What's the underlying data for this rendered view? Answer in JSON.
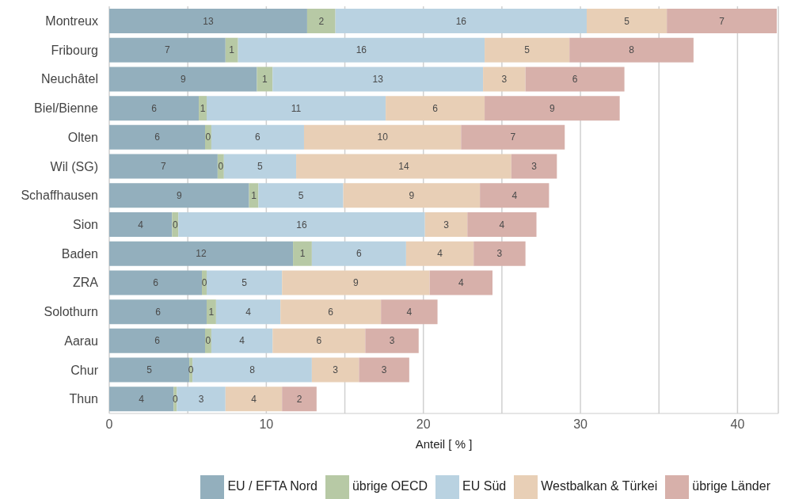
{
  "chart_data": {
    "type": "bar",
    "orientation": "horizontal",
    "stacked": true,
    "categories": [
      "Montreux",
      "Fribourg",
      "Neuchâtel",
      "Biel/Bienne",
      "Olten",
      "Wil (SG)",
      "Schaffhausen",
      "Sion",
      "Baden",
      "ZRA",
      "Solothurn",
      "Aarau",
      "Chur",
      "Thun"
    ],
    "series": [
      {
        "name": "EU / EFTA Nord",
        "color": "#93afbd",
        "values": [
          12.6,
          7.4,
          9.4,
          5.7,
          6.1,
          6.9,
          8.9,
          4.0,
          11.7,
          5.9,
          6.2,
          6.1,
          5.1,
          4.1
        ],
        "value_labels": [
          "13",
          "7",
          "9",
          "6",
          "6",
          "7",
          "9",
          "4",
          "12",
          "6",
          "6",
          "6",
          "5",
          "4"
        ]
      },
      {
        "name": "übrige OECD",
        "color": "#b7c9a5",
        "values": [
          1.8,
          0.8,
          1.0,
          0.5,
          0.4,
          0.4,
          0.6,
          0.4,
          1.2,
          0.3,
          0.6,
          0.4,
          0.2,
          0.2
        ],
        "value_labels": [
          "2",
          "1",
          "1",
          "1",
          "0",
          "0",
          "1",
          "0",
          "1",
          "0",
          "1",
          "0",
          "0",
          "0"
        ]
      },
      {
        "name": "EU Süd",
        "color": "#b9d2e1",
        "values": [
          16.0,
          15.7,
          13.4,
          11.4,
          5.9,
          4.6,
          5.4,
          15.7,
          6.0,
          4.8,
          4.1,
          3.9,
          7.6,
          3.1
        ],
        "value_labels": [
          "16",
          "16",
          "13",
          "11",
          "6",
          "5",
          "5",
          "16",
          "6",
          "5",
          "4",
          "4",
          "8",
          "3"
        ]
      },
      {
        "name": "Westbalkan & Türkei",
        "color": "#e8cfb6",
        "values": [
          5.1,
          5.4,
          2.7,
          6.3,
          10.0,
          13.7,
          8.7,
          2.7,
          4.3,
          9.4,
          6.4,
          5.9,
          3.0,
          3.6
        ],
        "value_labels": [
          "5",
          "5",
          "3",
          "6",
          "10",
          "14",
          "9",
          "3",
          "4",
          "9",
          "6",
          "6",
          "3",
          "4"
        ]
      },
      {
        "name": "übrige Länder",
        "color": "#d7b0aa",
        "values": [
          7.0,
          7.9,
          6.3,
          8.6,
          6.6,
          2.9,
          4.4,
          4.4,
          3.3,
          4.0,
          3.6,
          3.4,
          3.2,
          2.2
        ],
        "value_labels": [
          "7",
          "8",
          "6",
          "9",
          "7",
          "3",
          "4",
          "4",
          "3",
          "4",
          "4",
          "3",
          "3",
          "2"
        ]
      }
    ],
    "xlabel": "Anteil [ % ]",
    "xlim": [
      0,
      42.6
    ],
    "xticks": [
      0,
      {
        "value": 5,
        "label": null
      },
      10,
      {
        "value": 15,
        "label": null
      },
      20,
      {
        "value": 25,
        "label": null
      },
      30,
      {
        "value": 35,
        "label": null
      },
      40
    ],
    "grid": "x",
    "legend": "bottom right"
  }
}
